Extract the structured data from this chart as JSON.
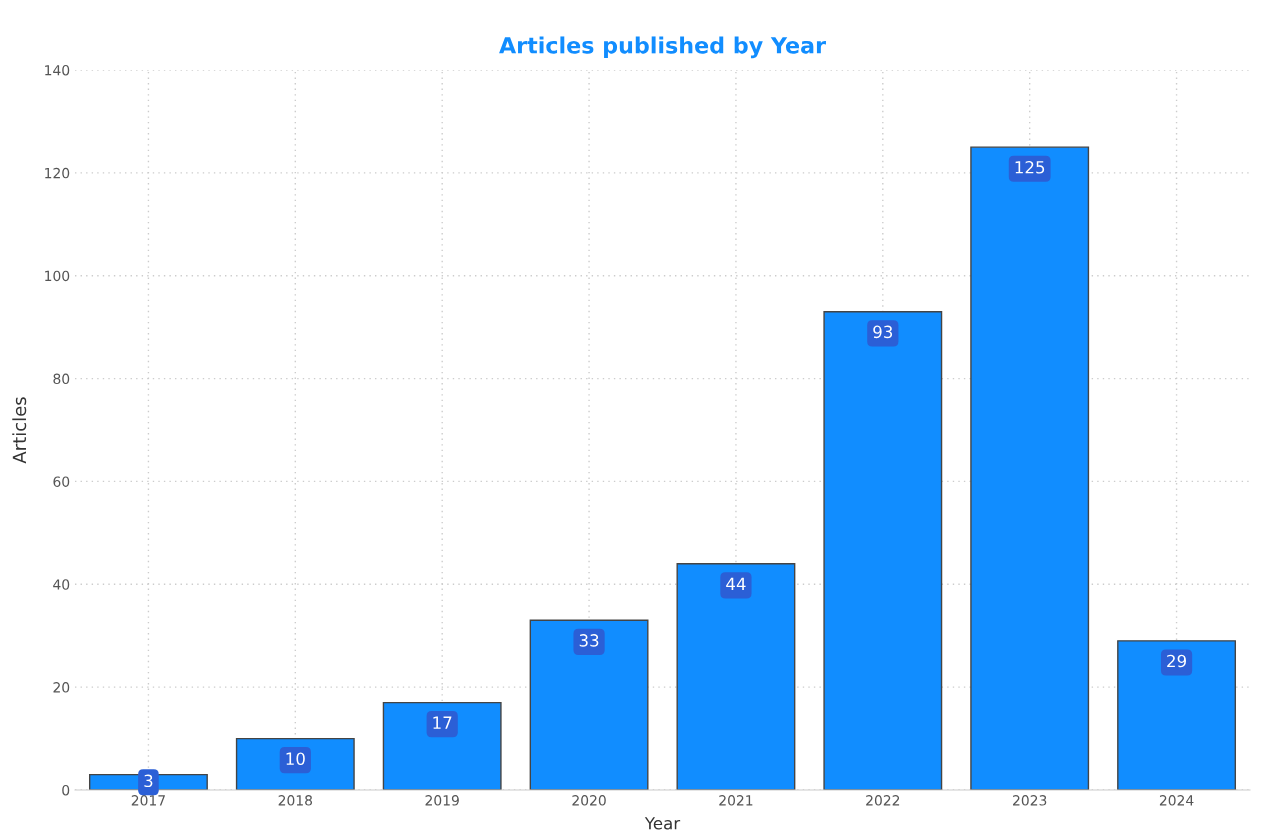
{
  "chart_data": {
    "type": "bar",
    "title": "Articles published by Year",
    "xlabel": "Year",
    "ylabel": "Articles",
    "categories": [
      "2017",
      "2018",
      "2019",
      "2020",
      "2021",
      "2022",
      "2023",
      "2024"
    ],
    "values": [
      3,
      10,
      17,
      33,
      44,
      93,
      125,
      29
    ],
    "color": "#118dff",
    "ylim": [
      0,
      140
    ],
    "yticks": [
      0,
      20,
      40,
      60,
      80,
      100,
      120,
      140
    ],
    "grid": true,
    "data_labels": true
  }
}
